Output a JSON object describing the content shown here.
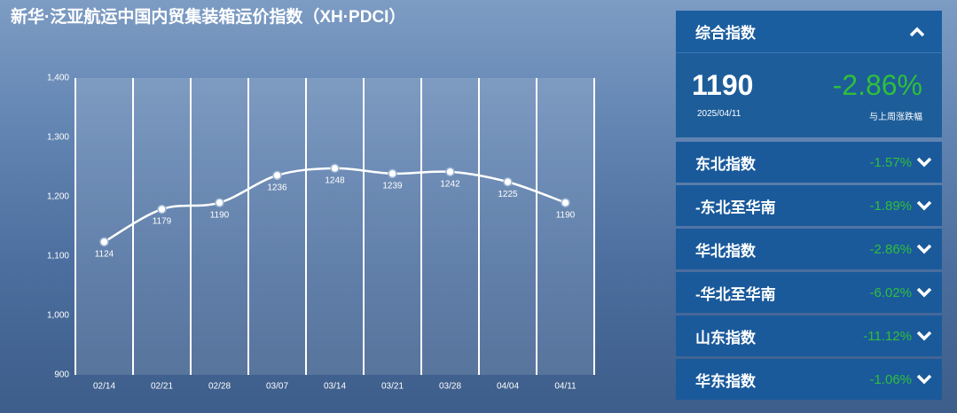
{
  "title": "新华·泛亚航运中国内贸集装箱运价指数（XH·PDCI）",
  "chart_data": {
    "type": "line",
    "categories": [
      "02/14",
      "02/21",
      "02/28",
      "03/07",
      "03/14",
      "03/21",
      "03/28",
      "04/04",
      "04/11"
    ],
    "values": [
      1124,
      1179,
      1190,
      1236,
      1248,
      1239,
      1242,
      1225,
      1190
    ],
    "color": "#ffffff",
    "ylim": [
      900,
      1400
    ],
    "yticks": [
      900,
      {
        "value": 1000,
        "label": "1,000"
      },
      {
        "value": 1100,
        "label": "1,100"
      },
      {
        "value": 1200,
        "label": "1,200"
      },
      {
        "value": 1300,
        "label": "1,300"
      },
      {
        "value": 1400,
        "label": "1,400"
      }
    ]
  },
  "panel": {
    "header": "综合指数",
    "value": 1190,
    "date": "2025/04/11",
    "change": "-2.86%",
    "change_label": "与上周涨跌幅",
    "rows": [
      {
        "name": "东北指数",
        "change": "-1.57%"
      },
      {
        "name": "-东北至华南",
        "change": "-1.89%"
      },
      {
        "name": "华北指数",
        "change": "-2.86%"
      },
      {
        "name": "-华北至华南",
        "change": "-6.02%"
      },
      {
        "name": "山东指数",
        "change": "-11.12%"
      },
      {
        "name": "华东指数",
        "change": "-1.06%"
      }
    ]
  }
}
